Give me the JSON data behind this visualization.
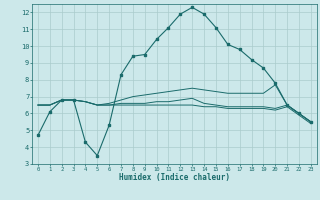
{
  "title": "",
  "xlabel": "Humidex (Indice chaleur)",
  "ylabel": "",
  "bg_color": "#cce8ea",
  "grid_color": "#aacccc",
  "line_color": "#1a6b6b",
  "xlim": [
    -0.5,
    23.5
  ],
  "ylim": [
    3,
    12.5
  ],
  "xticks": [
    0,
    1,
    2,
    3,
    4,
    5,
    6,
    7,
    8,
    9,
    10,
    11,
    12,
    13,
    14,
    15,
    16,
    17,
    18,
    19,
    20,
    21,
    22,
    23
  ],
  "yticks": [
    3,
    4,
    5,
    6,
    7,
    8,
    9,
    10,
    11,
    12
  ],
  "series1_x": [
    0,
    1,
    2,
    3,
    4,
    5,
    6,
    7,
    8,
    9,
    10,
    11,
    12,
    13,
    14,
    15,
    16,
    17,
    18,
    19,
    20,
    21,
    22,
    23
  ],
  "series1_y": [
    4.7,
    6.1,
    6.8,
    6.8,
    4.3,
    3.5,
    5.3,
    8.3,
    9.4,
    9.5,
    10.4,
    11.1,
    11.9,
    12.3,
    11.9,
    11.1,
    10.1,
    9.8,
    9.2,
    8.7,
    7.8,
    6.5,
    6.0,
    5.5
  ],
  "series2_x": [
    0,
    1,
    2,
    3,
    4,
    5,
    6,
    7,
    8,
    9,
    10,
    11,
    12,
    13,
    14,
    15,
    16,
    17,
    18,
    19,
    20,
    21,
    22,
    23
  ],
  "series2_y": [
    6.5,
    6.5,
    6.8,
    6.8,
    6.7,
    6.5,
    6.5,
    6.6,
    6.6,
    6.6,
    6.7,
    6.7,
    6.8,
    6.9,
    6.6,
    6.5,
    6.4,
    6.4,
    6.4,
    6.4,
    6.3,
    6.5,
    6.0,
    5.5
  ],
  "series3_x": [
    0,
    1,
    2,
    3,
    4,
    5,
    6,
    7,
    8,
    9,
    10,
    11,
    12,
    13,
    14,
    15,
    16,
    17,
    18,
    19,
    20,
    21,
    22,
    23
  ],
  "series3_y": [
    6.5,
    6.5,
    6.8,
    6.8,
    6.7,
    6.5,
    6.6,
    6.8,
    7.0,
    7.1,
    7.2,
    7.3,
    7.4,
    7.5,
    7.4,
    7.3,
    7.2,
    7.2,
    7.2,
    7.2,
    7.7,
    6.5,
    6.0,
    5.5
  ],
  "series4_x": [
    0,
    1,
    2,
    3,
    4,
    5,
    6,
    7,
    8,
    9,
    10,
    11,
    12,
    13,
    14,
    15,
    16,
    17,
    18,
    19,
    20,
    21,
    22,
    23
  ],
  "series4_y": [
    6.5,
    6.5,
    6.8,
    6.8,
    6.7,
    6.5,
    6.5,
    6.5,
    6.5,
    6.5,
    6.5,
    6.5,
    6.5,
    6.5,
    6.4,
    6.4,
    6.3,
    6.3,
    6.3,
    6.3,
    6.2,
    6.4,
    5.9,
    5.4
  ]
}
